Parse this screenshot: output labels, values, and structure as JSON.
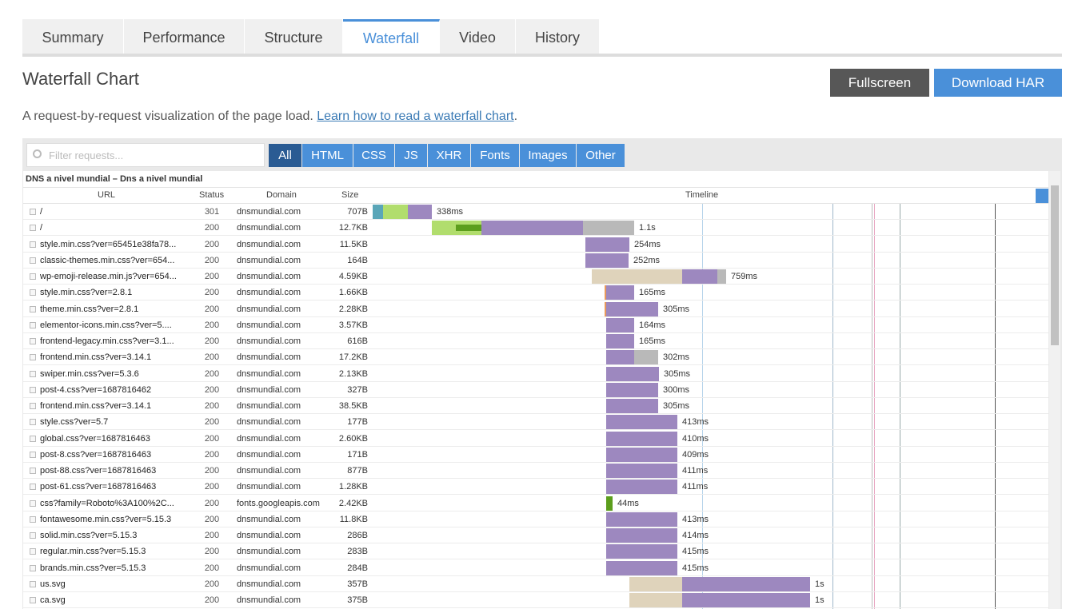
{
  "tabs": [
    "Summary",
    "Performance",
    "Structure",
    "Waterfall",
    "Video",
    "History"
  ],
  "heading": "Waterfall Chart",
  "buttons": [
    "Fullscreen",
    "Download HAR"
  ],
  "description": {
    "text": "A request-by-request visualization of the page load. ",
    "link": "Learn how to read a waterfall chart",
    "end": "."
  },
  "filter_placeholder": "Filter requests...",
  "filters": [
    "All",
    "HTML",
    "CSS",
    "JS",
    "XHR",
    "Fonts",
    "Images",
    "Other"
  ],
  "table": {
    "group": "DNS a nivel mundial – Dns a nivel mundial",
    "columns": [
      "URL",
      "Status",
      "Domain",
      "Size",
      "Timeline"
    ],
    "rows": [
      [
        "/",
        "301",
        "dnsmundial.com",
        "707B",
        "338ms"
      ],
      [
        "/",
        "200",
        "dnsmundial.com",
        "12.7KB",
        "1.1s"
      ],
      [
        "style.min.css?ver=65451e38fa78...",
        "200",
        "dnsmundial.com",
        "11.5KB",
        "254ms"
      ],
      [
        "classic-themes.min.css?ver=654...",
        "200",
        "dnsmundial.com",
        "164B",
        "252ms"
      ],
      [
        "wp-emoji-release.min.js?ver=654...",
        "200",
        "dnsmundial.com",
        "4.59KB",
        "759ms"
      ],
      [
        "style.min.css?ver=2.8.1",
        "200",
        "dnsmundial.com",
        "1.66KB",
        "165ms"
      ],
      [
        "theme.min.css?ver=2.8.1",
        "200",
        "dnsmundial.com",
        "2.28KB",
        "305ms"
      ],
      [
        "elementor-icons.min.css?ver=5....",
        "200",
        "dnsmundial.com",
        "3.57KB",
        "164ms"
      ],
      [
        "frontend-legacy.min.css?ver=3.1...",
        "200",
        "dnsmundial.com",
        "616B",
        "165ms"
      ],
      [
        "frontend.min.css?ver=3.14.1",
        "200",
        "dnsmundial.com",
        "17.2KB",
        "302ms"
      ],
      [
        "swiper.min.css?ver=5.3.6",
        "200",
        "dnsmundial.com",
        "2.13KB",
        "305ms"
      ],
      [
        "post-4.css?ver=1687816462",
        "200",
        "dnsmundial.com",
        "327B",
        "300ms"
      ],
      [
        "frontend.min.css?ver=3.14.1",
        "200",
        "dnsmundial.com",
        "38.5KB",
        "305ms"
      ],
      [
        "style.css?ver=5.7",
        "200",
        "dnsmundial.com",
        "177B",
        "413ms"
      ],
      [
        "global.css?ver=1687816463",
        "200",
        "dnsmundial.com",
        "2.60KB",
        "410ms"
      ],
      [
        "post-8.css?ver=1687816463",
        "200",
        "dnsmundial.com",
        "171B",
        "409ms"
      ],
      [
        "post-88.css?ver=1687816463",
        "200",
        "dnsmundial.com",
        "877B",
        "411ms"
      ],
      [
        "post-61.css?ver=1687816463",
        "200",
        "dnsmundial.com",
        "1.28KB",
        "411ms"
      ],
      [
        "css?family=Roboto%3A100%2C...",
        "200",
        "fonts.googleapis.com",
        "2.42KB",
        "44ms"
      ],
      [
        "fontawesome.min.css?ver=5.15.3",
        "200",
        "dnsmundial.com",
        "11.8KB",
        "413ms"
      ],
      [
        "solid.min.css?ver=5.15.3",
        "200",
        "dnsmundial.com",
        "286B",
        "414ms"
      ],
      [
        "regular.min.css?ver=5.15.3",
        "200",
        "dnsmundial.com",
        "283B",
        "415ms"
      ],
      [
        "brands.min.css?ver=5.15.3",
        "200",
        "dnsmundial.com",
        "284B",
        "415ms"
      ],
      [
        "us.svg",
        "200",
        "dnsmundial.com",
        "357B",
        "1s"
      ],
      [
        "ca.svg",
        "200",
        "dnsmundial.com",
        "375B",
        "1s"
      ]
    ]
  }
}
